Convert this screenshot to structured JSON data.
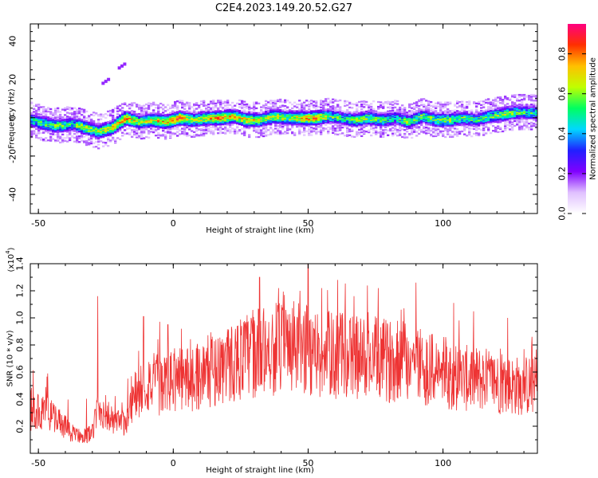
{
  "title": "C2E4.2023.149.20.52.G27",
  "chart_data": [
    {
      "type": "heatmap",
      "xlabel": "Height of straight line (km)",
      "ylabel": "Frequency (Hz)",
      "xlim": [
        -53,
        135
      ],
      "ylim": [
        -50,
        49
      ],
      "xticks": [
        -50,
        0,
        50,
        100
      ],
      "yticks": [
        -40,
        -20,
        0,
        20,
        40
      ],
      "xtick_labels": [
        "-50",
        "0",
        "50",
        "100"
      ],
      "ytick_labels": [
        "-40",
        "-20",
        "0",
        "20",
        "40"
      ],
      "ridge": {
        "x": [
          -53,
          -48,
          -43,
          -38,
          -33,
          -28,
          -23,
          -18,
          -13,
          -8,
          -3,
          2,
          7,
          12,
          17,
          22,
          27,
          32,
          37,
          42,
          47,
          52,
          57,
          62,
          67,
          72,
          77,
          82,
          87,
          92,
          97,
          102,
          107,
          112,
          117,
          122,
          127,
          132,
          135
        ],
        "y": [
          -1,
          -3,
          -4,
          -3,
          -5,
          -7,
          -5,
          0,
          -2,
          -1,
          -2,
          0,
          -1,
          0,
          0,
          1,
          -1,
          -1,
          1,
          0,
          0,
          0,
          1,
          0,
          -1,
          0,
          -1,
          0,
          -2,
          1,
          -1,
          -1,
          0,
          -1,
          1,
          2,
          3,
          3,
          3
        ]
      },
      "ridge_amplitude": [
        0.5,
        0.55,
        0.6,
        0.5,
        0.65,
        0.6,
        0.7,
        0.8,
        0.6,
        0.7,
        0.75,
        0.85,
        0.6,
        0.7,
        0.8,
        0.7,
        0.75,
        0.6,
        0.7,
        0.6,
        0.7,
        0.8,
        0.6,
        0.5,
        0.6,
        0.6,
        0.55,
        0.5,
        0.6,
        0.55,
        0.6,
        0.6,
        0.55,
        0.5,
        0.55,
        0.6,
        0.55,
        0.5,
        0.5
      ],
      "harmonic_trace": {
        "x": [
          -26,
          -25,
          -24,
          -20,
          -19,
          -18
        ],
        "y": [
          18,
          19,
          20,
          26,
          27,
          28
        ],
        "amplitude": 0.2
      },
      "colorbar": {
        "label": "Normalized spectral amplitude",
        "range": [
          0,
          0.95
        ],
        "ticks": [
          0.0,
          0.2,
          0.4,
          0.6,
          0.8
        ],
        "tick_labels": [
          "0.0",
          "0.2",
          "0.4",
          "0.6",
          "0.8"
        ],
        "colormap": [
          "#ffffff",
          "#e0c0ff",
          "#8000ff",
          "#2020ff",
          "#00d8ff",
          "#00ff60",
          "#c0ff00",
          "#ffc000",
          "#ff3000",
          "#ff0080"
        ]
      }
    },
    {
      "type": "line",
      "xlabel": "Height of straight line (km)",
      "ylabel": "SNR (10 * v/v)",
      "y_multiplier_label": "(x10",
      "y_multiplier_exp": "4",
      "y_multiplier_close": ")",
      "xlim": [
        -53,
        135
      ],
      "ylim": [
        0.0,
        1.4
      ],
      "xticks": [
        -50,
        0,
        50,
        100
      ],
      "yticks": [
        0.2,
        0.4,
        0.6,
        0.8,
        1.0,
        1.2,
        1.4
      ],
      "xtick_labels": [
        "-50",
        "0",
        "50",
        "100"
      ],
      "ytick_labels": [
        "0.2",
        "0.4",
        "0.6",
        "0.8",
        "1.0",
        "1.2",
        "1.4"
      ],
      "color": "#ee3333",
      "envelope": {
        "x": [
          -53,
          -48,
          -43,
          -38,
          -33,
          -30,
          -28,
          -25,
          -22,
          -18,
          -15,
          -12,
          -8,
          -4,
          0,
          5,
          10,
          15,
          20,
          25,
          30,
          35,
          40,
          45,
          50,
          55,
          60,
          65,
          70,
          75,
          80,
          85,
          90,
          95,
          100,
          105,
          110,
          115,
          120,
          125,
          130,
          135
        ],
        "y": [
          0.3,
          0.3,
          0.25,
          0.15,
          0.13,
          0.15,
          0.33,
          0.3,
          0.22,
          0.22,
          0.4,
          0.48,
          0.52,
          0.5,
          0.55,
          0.55,
          0.58,
          0.62,
          0.66,
          0.7,
          0.74,
          0.76,
          0.78,
          0.78,
          0.76,
          0.74,
          0.72,
          0.72,
          0.7,
          0.7,
          0.68,
          0.7,
          0.68,
          0.62,
          0.6,
          0.56,
          0.55,
          0.55,
          0.52,
          0.5,
          0.5,
          0.5
        ]
      },
      "peaks": [
        {
          "x": -28,
          "y": 1.16
        },
        {
          "x": -11,
          "y": 1.01
        },
        {
          "x": -2,
          "y": 0.95
        },
        {
          "x": 3,
          "y": 0.92
        },
        {
          "x": 32,
          "y": 1.3
        },
        {
          "x": 39,
          "y": 1.22
        },
        {
          "x": 47,
          "y": 1.2
        },
        {
          "x": 50,
          "y": 1.4
        },
        {
          "x": 55,
          "y": 1.22
        },
        {
          "x": 61,
          "y": 1.28
        },
        {
          "x": 67,
          "y": 1.16
        },
        {
          "x": 76,
          "y": 1.22
        },
        {
          "x": 90,
          "y": 1.26
        },
        {
          "x": 104,
          "y": 1.11
        },
        {
          "x": 124,
          "y": 1.0
        },
        {
          "x": 133,
          "y": 0.86
        }
      ]
    }
  ]
}
